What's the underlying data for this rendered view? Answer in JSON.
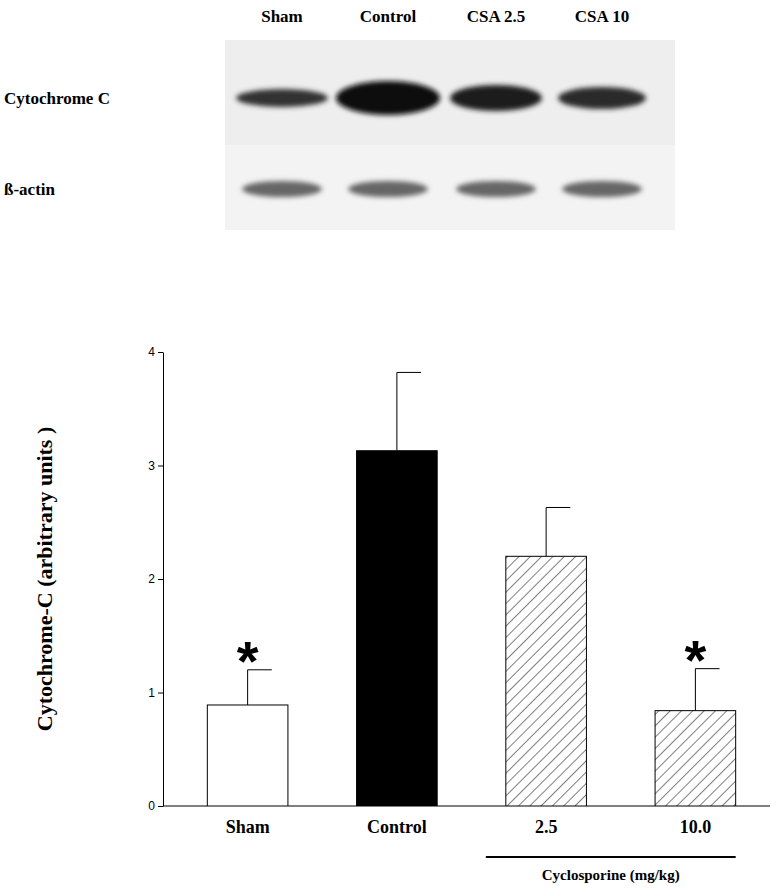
{
  "chart_data": {
    "type": "bar",
    "categories": [
      "Sham",
      "Control",
      "2.5",
      "10.0"
    ],
    "values": [
      0.89,
      3.13,
      2.2,
      0.84
    ],
    "errors": [
      0.31,
      0.69,
      0.43,
      0.37
    ],
    "colors": [
      "#ffffff",
      "#000000",
      "#ffffff",
      "#ffffff"
    ],
    "y_label": "Cytochrome-C (arbitrary units )",
    "x_group": {
      "label": "Cyclosporine (mg/kg)",
      "categories": [
        "2.5",
        "10.0"
      ]
    },
    "annotations": [
      {
        "text": "*",
        "category": "Sham"
      },
      {
        "text": "*",
        "category": "10.0"
      }
    ],
    "ylim": [
      0,
      4
    ],
    "yticks": [
      0,
      1,
      2,
      3,
      4
    ],
    "grid": false
  },
  "blot": {
    "lanes": [
      "Sham",
      "Control",
      "CSA 2.5",
      "CSA 10"
    ],
    "rows": [
      "Cytochrome C",
      "ß-actin"
    ]
  }
}
